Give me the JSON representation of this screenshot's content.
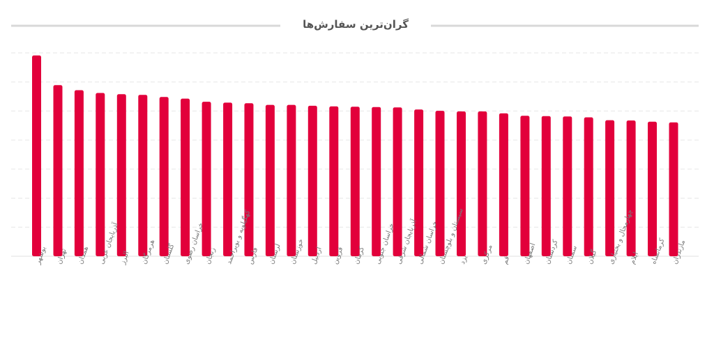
{
  "chart_data": {
    "type": "bar",
    "title": "گران‌ترین سفارش‌ها",
    "xlabel": "",
    "ylabel": "",
    "grid": true,
    "legend": "none",
    "colors": {
      "bar": "#e2003b",
      "grid": "#e6e6e6",
      "title_rule": "#d8d8d8",
      "text": "#7a7a7a"
    },
    "ylim": [
      0,
      650
    ],
    "categories": [
      "بوشهر",
      "تهران",
      "همدان",
      "آذربایجان غربی",
      "البرز",
      "هرمزگان",
      "گلستان",
      "خراسان رضوی",
      "زنجان",
      "کهگیلویه و بویراحمد",
      "فارس",
      "لرستان",
      "خوزستان",
      "اردبیل",
      "قزوین",
      "کرمان",
      "خراسان جنوبی",
      "آذربایجان شرقی",
      "خراسان شمالی",
      "سیستان و بلوچستان",
      "یزد",
      "مرکزی",
      "قم",
      "اصفهان",
      "کردستان",
      "سمنان",
      "گیلان",
      "چهارمحال و بختیاری",
      "ایلام",
      "کرمانشاه",
      "مازندران"
    ],
    "values": [
      642,
      547,
      531,
      522,
      518,
      516,
      509,
      504,
      494,
      491,
      489,
      484,
      484,
      481,
      479,
      478,
      477,
      476,
      469,
      465,
      463,
      463,
      457,
      449,
      448,
      447,
      444,
      435,
      434,
      430,
      428
    ]
  }
}
